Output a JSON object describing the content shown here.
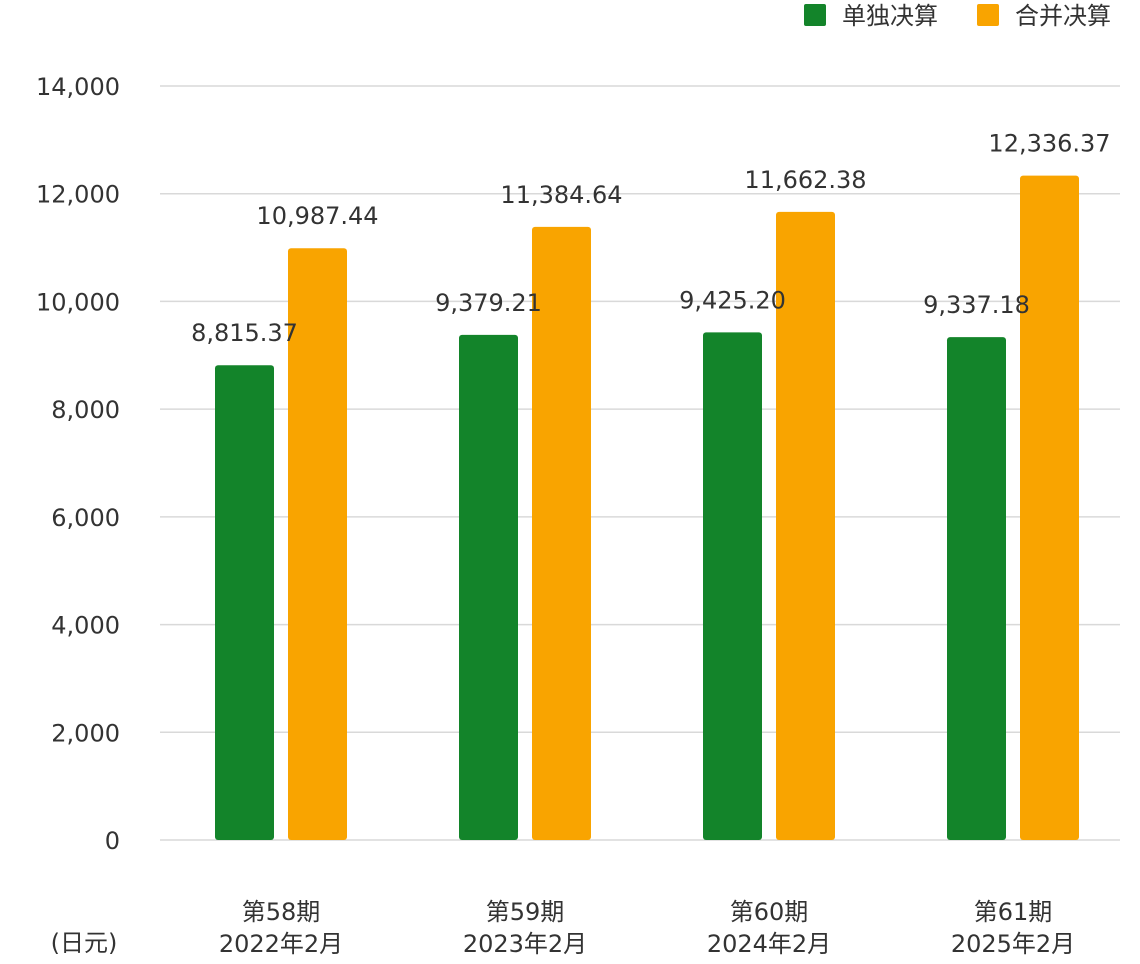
{
  "colors": {
    "single": "#13842a",
    "consolidated": "#f9a400",
    "grid": "#d9d9d9",
    "text": "#333333"
  },
  "unit_label": "(日元)",
  "chart_data": {
    "type": "bar",
    "categories": [
      [
        "第58期",
        "2022年2月"
      ],
      [
        "第59期",
        "2023年2月"
      ],
      [
        "第60期",
        "2024年2月"
      ],
      [
        "第61期",
        "2025年2月"
      ]
    ],
    "series": [
      {
        "name": "单独决算",
        "values": [
          8815.37,
          9379.21,
          9425.2,
          9337.18
        ],
        "labels": [
          "8,815.37",
          "9,379.21",
          "9,425.20",
          "9,337.18"
        ]
      },
      {
        "name": "合并决算",
        "values": [
          10987.44,
          11384.64,
          11662.38,
          12336.37
        ],
        "labels": [
          "10,987.44",
          "11,384.64",
          "11,662.38",
          "12,336.37"
        ]
      }
    ],
    "yticks": [
      0,
      2000,
      4000,
      6000,
      8000,
      10000,
      12000,
      14000
    ],
    "ytick_labels": [
      "0",
      "2,000",
      "4,000",
      "6,000",
      "8,000",
      "10,000",
      "12,000",
      "14,000"
    ],
    "ylim": [
      0,
      14000
    ],
    "grid": true,
    "legend_position": "top-right"
  }
}
